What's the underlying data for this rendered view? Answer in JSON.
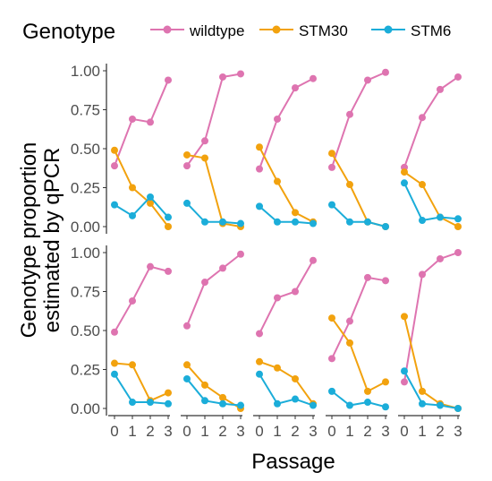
{
  "chart_data": {
    "type": "line",
    "legend": {
      "title": "Genotype",
      "placement": "top"
    },
    "xlabel": "Passage",
    "ylabel": [
      "Genotype proportion",
      "estimated by qPCR"
    ],
    "x": [
      0,
      1,
      2,
      3
    ],
    "x_ticks": [
      "0",
      "1",
      "2",
      "3"
    ],
    "ylim": [
      0,
      1
    ],
    "y_ticks": [
      "0.00",
      "0.25",
      "0.50",
      "0.75",
      "1.00"
    ],
    "grid": false,
    "series_meta": [
      {
        "name": "wildtype",
        "color": "#DE74B0"
      },
      {
        "name": "STM30",
        "color": "#F2A20E"
      },
      {
        "name": "STM6",
        "color": "#1BADD9"
      }
    ],
    "panels": [
      {
        "row": 0,
        "col": 0,
        "series": {
          "wildtype": [
            0.39,
            0.69,
            0.67,
            0.94
          ],
          "STM30": [
            0.49,
            0.25,
            0.15,
            0.0
          ],
          "STM6": [
            0.14,
            0.07,
            0.19,
            0.06
          ]
        }
      },
      {
        "row": 0,
        "col": 1,
        "series": {
          "wildtype": [
            0.39,
            0.55,
            0.96,
            0.98
          ],
          "STM30": [
            0.46,
            0.44,
            0.02,
            0.0
          ],
          "STM6": [
            0.15,
            0.03,
            0.03,
            0.02
          ]
        }
      },
      {
        "row": 0,
        "col": 2,
        "series": {
          "wildtype": [
            0.37,
            0.69,
            0.89,
            0.95
          ],
          "STM30": [
            0.51,
            0.29,
            0.09,
            0.03
          ],
          "STM6": [
            0.13,
            0.03,
            0.03,
            0.02
          ]
        }
      },
      {
        "row": 0,
        "col": 3,
        "series": {
          "wildtype": [
            0.38,
            0.72,
            0.94,
            0.99
          ],
          "STM30": [
            0.47,
            0.27,
            0.03,
            0.0
          ],
          "STM6": [
            0.14,
            0.03,
            0.03,
            0.0
          ]
        }
      },
      {
        "row": 0,
        "col": 4,
        "series": {
          "wildtype": [
            0.38,
            0.7,
            0.88,
            0.96
          ],
          "STM30": [
            0.35,
            0.27,
            0.06,
            0.0
          ],
          "STM6": [
            0.28,
            0.04,
            0.06,
            0.05
          ]
        }
      },
      {
        "row": 1,
        "col": 0,
        "series": {
          "wildtype": [
            0.49,
            0.69,
            0.91,
            0.88
          ],
          "STM30": [
            0.29,
            0.28,
            0.05,
            0.1
          ],
          "STM6": [
            0.22,
            0.04,
            0.04,
            0.03
          ]
        }
      },
      {
        "row": 1,
        "col": 1,
        "series": {
          "wildtype": [
            0.53,
            0.81,
            0.9,
            0.99
          ],
          "STM30": [
            0.28,
            0.15,
            0.07,
            0.0
          ],
          "STM6": [
            0.19,
            0.05,
            0.03,
            0.02
          ]
        }
      },
      {
        "row": 1,
        "col": 2,
        "series": {
          "wildtype": [
            0.48,
            0.71,
            0.75,
            0.95
          ],
          "STM30": [
            0.3,
            0.26,
            0.19,
            0.03
          ],
          "STM6": [
            0.22,
            0.03,
            0.06,
            0.02
          ]
        }
      },
      {
        "row": 1,
        "col": 3,
        "series": {
          "wildtype": [
            0.32,
            0.56,
            0.84,
            0.82
          ],
          "STM30": [
            0.58,
            0.42,
            0.11,
            0.17
          ],
          "STM6": [
            0.11,
            0.02,
            0.04,
            0.01
          ]
        }
      },
      {
        "row": 1,
        "col": 4,
        "series": {
          "wildtype": [
            0.17,
            0.86,
            0.96,
            1.0
          ],
          "STM30": [
            0.59,
            0.11,
            0.03,
            0.0
          ],
          "STM6": [
            0.24,
            0.03,
            0.02,
            0.0
          ]
        }
      }
    ]
  }
}
